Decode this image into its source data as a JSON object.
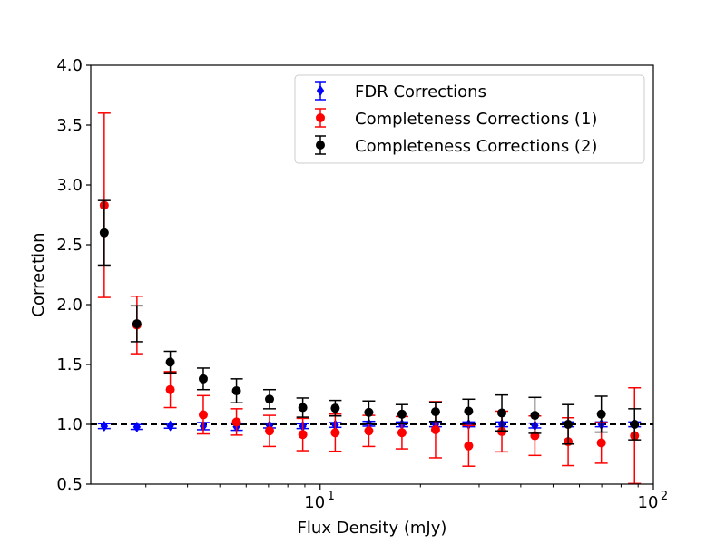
{
  "chart_data": {
    "type": "scatter",
    "xlabel": "Flux Density (mJy)",
    "ylabel": "Correction",
    "xscale": "log",
    "xlim": [
      2.05,
      100
    ],
    "ylim": [
      0.5,
      4.0
    ],
    "yticks": [
      "0.5",
      "1.0",
      "1.5",
      "2.0",
      "2.5",
      "3.0",
      "3.5",
      "4.0"
    ],
    "xticks": [
      {
        "value": 10,
        "base": "10",
        "exp": "1"
      },
      {
        "value": 100,
        "base": "10",
        "exp": "2"
      }
    ],
    "reference_line": {
      "y": 1.0,
      "style": "dashed",
      "color": "#000000"
    },
    "legend_position": "top-right",
    "series": [
      {
        "name": "FDR Corrections",
        "color": "#0000ff",
        "marker": "diamond",
        "x": [
          2.25,
          2.82,
          3.55,
          4.46,
          5.61,
          7.05,
          8.87,
          11.1,
          14.0,
          17.6,
          22.2,
          27.9,
          35.1,
          44.1,
          55.5,
          69.8,
          87.8
        ],
        "y": [
          0.985,
          0.978,
          0.988,
          0.985,
          0.98,
          0.99,
          0.985,
          0.995,
          1.005,
          1.0,
          1.0,
          1.0,
          1.0,
          0.99,
          1.0,
          1.0,
          1.0
        ],
        "err": [
          0.02,
          0.02,
          0.02,
          0.03,
          0.03,
          0.02,
          0.02,
          0.02,
          0.02,
          0.02,
          0.02,
          0.02,
          0.02,
          0.02,
          0.02,
          0.02,
          0.02
        ]
      },
      {
        "name": "Completeness Corrections (1)",
        "color": "#ff0000",
        "marker": "circle",
        "x": [
          2.25,
          2.82,
          3.55,
          4.46,
          5.61,
          7.05,
          8.87,
          11.1,
          14.0,
          17.6,
          22.2,
          27.9,
          35.1,
          44.1,
          55.5,
          69.8,
          87.8
        ],
        "y": [
          2.83,
          1.83,
          1.29,
          1.08,
          1.02,
          0.945,
          0.915,
          0.93,
          0.945,
          0.93,
          0.955,
          0.82,
          0.94,
          0.905,
          0.855,
          0.845,
          0.905
        ],
        "err": [
          0.77,
          0.24,
          0.15,
          0.16,
          0.11,
          0.13,
          0.135,
          0.155,
          0.13,
          0.135,
          0.235,
          0.17,
          0.17,
          0.165,
          0.2,
          0.17,
          0.4
        ]
      },
      {
        "name": "Completeness Corrections (2)",
        "color": "#000000",
        "marker": "circle",
        "x": [
          2.25,
          2.82,
          3.55,
          4.46,
          5.61,
          7.05,
          8.87,
          11.1,
          14.0,
          17.6,
          22.2,
          27.9,
          35.1,
          44.1,
          55.5,
          69.8,
          87.8
        ],
        "y": [
          2.6,
          1.84,
          1.52,
          1.38,
          1.28,
          1.21,
          1.14,
          1.135,
          1.1,
          1.085,
          1.105,
          1.11,
          1.095,
          1.075,
          1.0,
          1.085,
          1.0
        ],
        "err": [
          0.27,
          0.15,
          0.09,
          0.09,
          0.1,
          0.08,
          0.08,
          0.065,
          0.095,
          0.08,
          0.08,
          0.1,
          0.15,
          0.15,
          0.165,
          0.15,
          0.13
        ]
      }
    ]
  }
}
